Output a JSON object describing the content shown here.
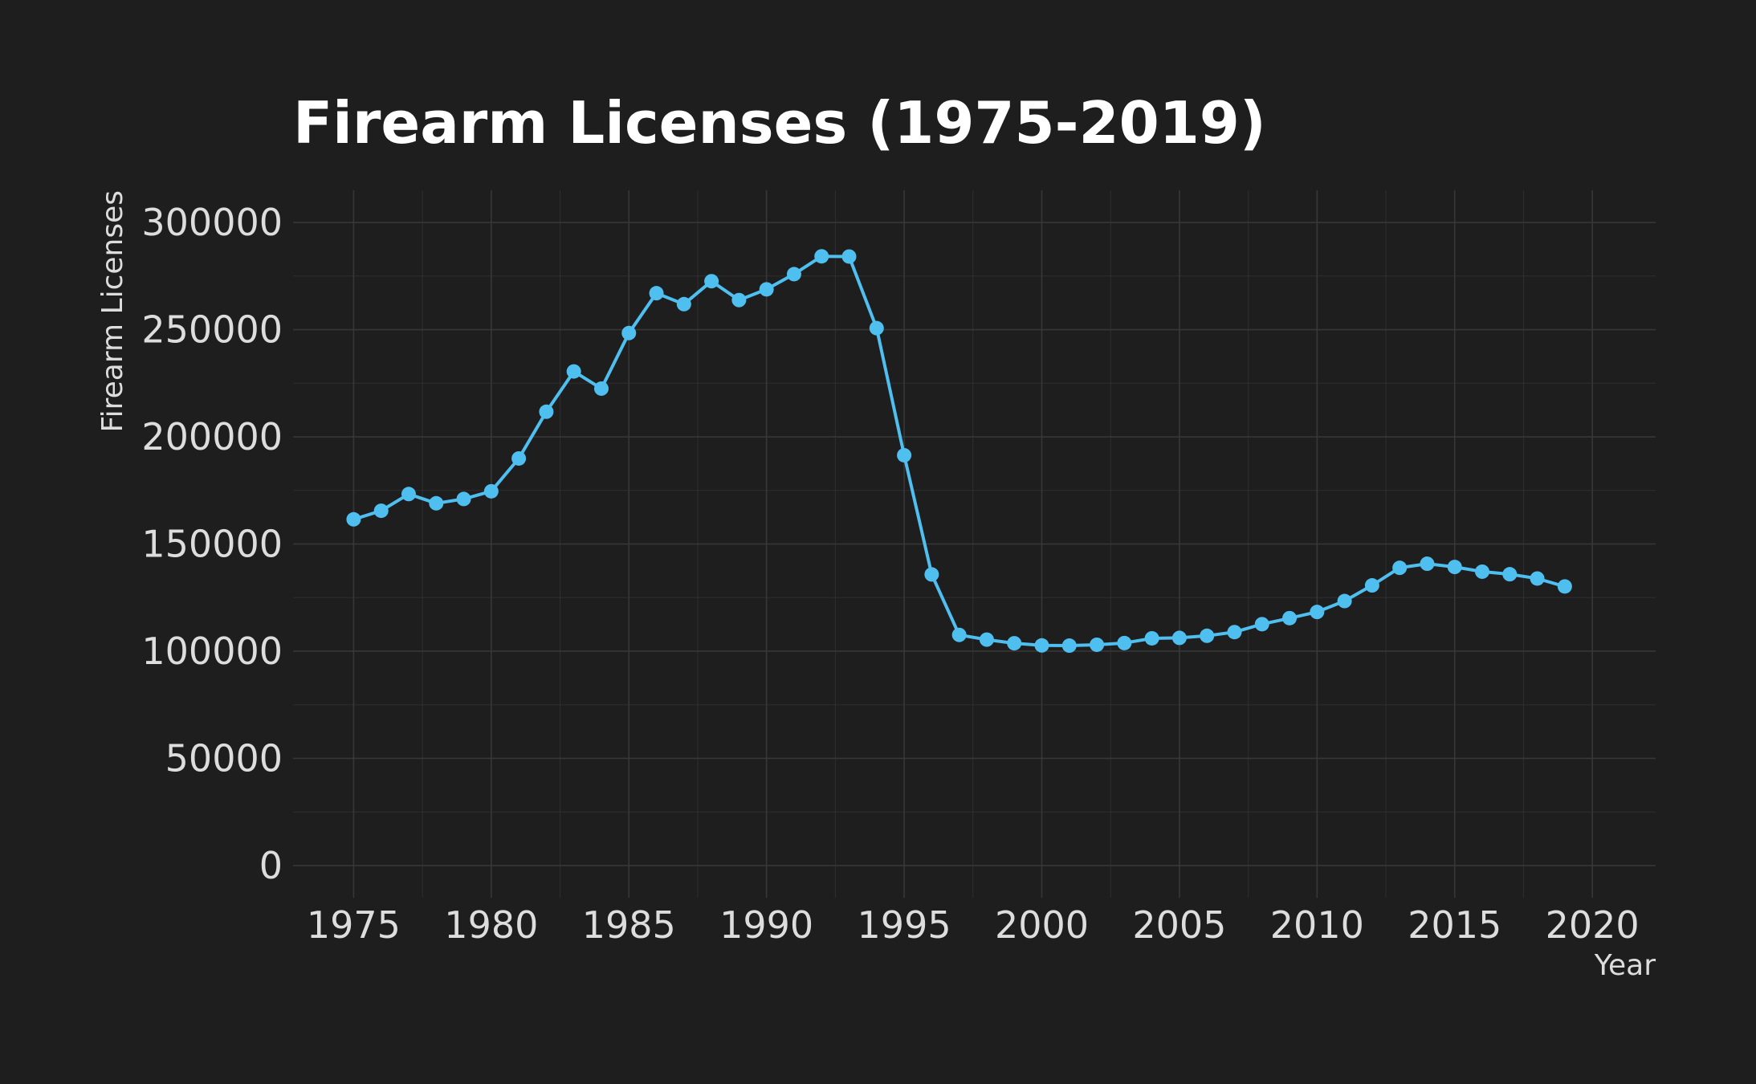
{
  "colors": {
    "background": "#1e1e1e",
    "line": "#4fbfef",
    "grid": "#3a3a3a",
    "text": "#dddddd",
    "title": "#ffffff"
  },
  "chart_data": {
    "type": "line",
    "title": "Firearm Licenses (1975-2019)",
    "xlabel": "Year",
    "ylabel": "Firearm Licenses",
    "xlim": [
      1972.8,
      2022.3
    ],
    "ylim": [
      -15000,
      315000
    ],
    "x_ticks": [
      1975,
      1980,
      1985,
      1990,
      1995,
      2000,
      2005,
      2010,
      2015,
      2020
    ],
    "y_ticks": [
      0,
      50000,
      100000,
      150000,
      200000,
      250000,
      300000
    ],
    "grid": true,
    "x": [
      1975,
      1976,
      1977,
      1978,
      1979,
      1980,
      1981,
      1982,
      1983,
      1984,
      1985,
      1986,
      1987,
      1988,
      1989,
      1990,
      1991,
      1992,
      1993,
      1994,
      1995,
      1996,
      1997,
      1998,
      1999,
      2000,
      2001,
      2002,
      2003,
      2004,
      2005,
      2006,
      2007,
      2008,
      2009,
      2010,
      2011,
      2012,
      2013,
      2014,
      2015,
      2016,
      2017,
      2018,
      2019
    ],
    "series": [
      {
        "values": [
          161500,
          165500,
          173300,
          169000,
          171000,
          174600,
          189900,
          211700,
          230500,
          222500,
          248400,
          267000,
          261900,
          272600,
          263800,
          268800,
          275900,
          284200,
          284100,
          250700,
          191400,
          135800,
          107600,
          105400,
          103700,
          102700,
          102600,
          103000,
          103800,
          106000,
          106200,
          107200,
          108900,
          112600,
          115400,
          118300,
          123400,
          130700,
          138900,
          140800,
          139300,
          137100,
          135900,
          133900,
          130200
        ]
      }
    ]
  }
}
